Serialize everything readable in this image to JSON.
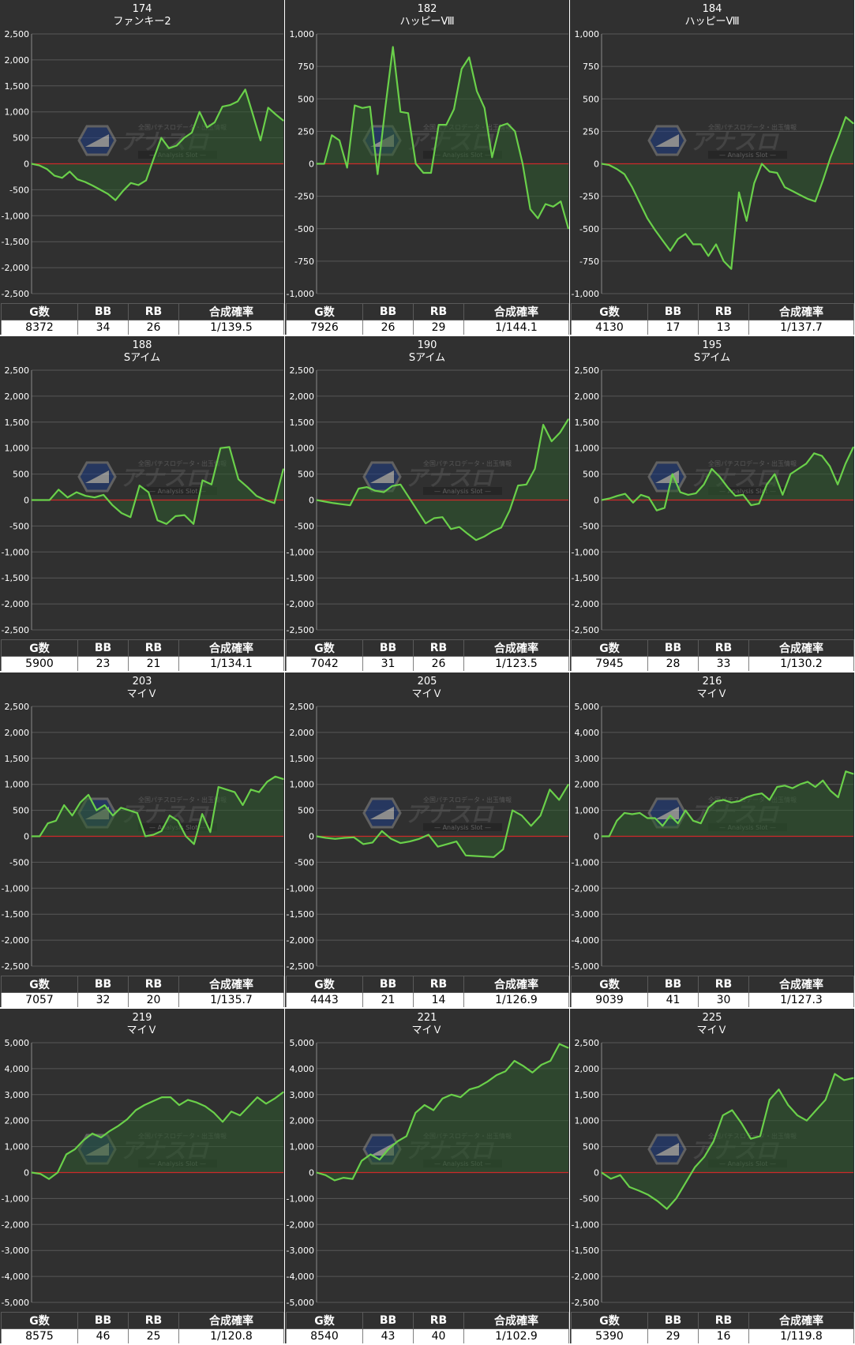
{
  "colors": {
    "panel_bg": "#303030",
    "line": "#6ad04a",
    "fill": "#2e5a2e",
    "zero_line": "#cc2a2a",
    "grid": "#575757",
    "axis_text": "#ffffff"
  },
  "table_headers": [
    "G数",
    "BB",
    "RB",
    "合成確率"
  ],
  "watermark": {
    "title": "アナスロ",
    "subtitle": "Analysis Slot",
    "tagline": "全国パチスロデータ・出玉情報"
  },
  "panels": [
    {
      "number": "174",
      "machine": "ファンキー2",
      "stats": [
        "8372",
        "34",
        "26",
        "1/139.5"
      ],
      "chart_data": {
        "type": "area",
        "ylim": [
          -2500,
          2500
        ],
        "yticks": [
          2500,
          2000,
          1500,
          1000,
          500,
          0,
          -500,
          -1000,
          -1500,
          -2000,
          -2500
        ],
        "values": [
          0,
          -30,
          -100,
          -230,
          -270,
          -150,
          -300,
          -350,
          -420,
          -500,
          -580,
          -700,
          -520,
          -370,
          -410,
          -320,
          100,
          500,
          300,
          350,
          500,
          600,
          1000,
          700,
          800,
          1100,
          1130,
          1200,
          1430,
          950,
          450,
          1080,
          950,
          830
        ]
      }
    },
    {
      "number": "182",
      "machine": "ハッピーⅧ",
      "stats": [
        "7926",
        "26",
        "29",
        "1/144.1"
      ],
      "chart_data": {
        "type": "area",
        "ylim": [
          -1000,
          1000
        ],
        "yticks": [
          1000,
          750,
          500,
          250,
          0,
          -250,
          -500,
          -750,
          -1000
        ],
        "values": [
          0,
          0,
          220,
          180,
          -30,
          450,
          430,
          440,
          -80,
          430,
          900,
          400,
          390,
          0,
          -70,
          -70,
          300,
          300,
          420,
          730,
          820,
          560,
          430,
          50,
          290,
          310,
          250,
          0,
          -350,
          -420,
          -310,
          -330,
          -290,
          -500
        ]
      }
    },
    {
      "number": "184",
      "machine": "ハッピーⅧ",
      "stats": [
        "4130",
        "17",
        "13",
        "1/137.7"
      ],
      "chart_data": {
        "type": "area",
        "ylim": [
          -1000,
          1000
        ],
        "yticks": [
          1000,
          750,
          500,
          250,
          0,
          -250,
          -500,
          -750,
          -1000
        ],
        "values": [
          0,
          -10,
          -40,
          -80,
          -180,
          -300,
          -420,
          -510,
          -590,
          -670,
          -580,
          -540,
          -620,
          -620,
          -710,
          -620,
          -750,
          -810,
          -220,
          -440,
          -150,
          0,
          -60,
          -70,
          -180,
          -210,
          -240,
          -270,
          -290,
          -130,
          50,
          200,
          360,
          310
        ]
      }
    },
    {
      "number": "188",
      "machine": "Sアイム",
      "stats": [
        "5900",
        "23",
        "21",
        "1/134.1"
      ],
      "chart_data": {
        "type": "area",
        "ylim": [
          -2500,
          2500
        ],
        "yticks": [
          2500,
          2000,
          1500,
          1000,
          500,
          0,
          -500,
          -1000,
          -1500,
          -2000,
          -2500
        ],
        "values": [
          0,
          0,
          0,
          200,
          50,
          150,
          80,
          50,
          100,
          -100,
          -250,
          -330,
          280,
          150,
          -390,
          -460,
          -310,
          -290,
          -460,
          380,
          300,
          1000,
          1020,
          400,
          250,
          80,
          0,
          -60,
          600
        ]
      }
    },
    {
      "number": "190",
      "machine": "Sアイム",
      "stats": [
        "7042",
        "31",
        "26",
        "1/123.5"
      ],
      "chart_data": {
        "type": "area",
        "ylim": [
          -2500,
          2500
        ],
        "yticks": [
          2500,
          2000,
          1500,
          1000,
          500,
          0,
          -500,
          -1000,
          -1500,
          -2000,
          -2500
        ],
        "values": [
          0,
          -30,
          -60,
          -80,
          -100,
          220,
          250,
          180,
          150,
          270,
          300,
          50,
          -200,
          -450,
          -350,
          -330,
          -560,
          -520,
          -650,
          -770,
          -700,
          -600,
          -530,
          -200,
          280,
          300,
          600,
          1450,
          1130,
          1300,
          1560
        ]
      }
    },
    {
      "number": "195",
      "machine": "Sアイム",
      "stats": [
        "7945",
        "28",
        "33",
        "1/130.2"
      ],
      "chart_data": {
        "type": "area",
        "ylim": [
          -2500,
          2500
        ],
        "yticks": [
          2500,
          2000,
          1500,
          1000,
          500,
          0,
          -500,
          -1000,
          -1500,
          -2000,
          -2500
        ],
        "values": [
          0,
          30,
          80,
          120,
          -50,
          100,
          50,
          -200,
          -150,
          500,
          150,
          100,
          130,
          300,
          600,
          450,
          250,
          80,
          100,
          -100,
          -70,
          300,
          500,
          100,
          500,
          600,
          700,
          900,
          850,
          650,
          300,
          700,
          1020
        ]
      }
    },
    {
      "number": "203",
      "machine": "マイＶ",
      "stats": [
        "7057",
        "32",
        "20",
        "1/135.7"
      ],
      "chart_data": {
        "type": "area",
        "ylim": [
          -2500,
          2500
        ],
        "yticks": [
          2500,
          2000,
          1500,
          1000,
          500,
          0,
          -500,
          -1000,
          -1500,
          -2000,
          -2500
        ],
        "values": [
          0,
          0,
          250,
          300,
          600,
          400,
          650,
          800,
          500,
          600,
          400,
          550,
          500,
          450,
          0,
          30,
          100,
          400,
          300,
          0,
          -150,
          430,
          80,
          950,
          900,
          850,
          600,
          900,
          850,
          1050,
          1150,
          1100
        ]
      }
    },
    {
      "number": "205",
      "machine": "マイＶ",
      "stats": [
        "4443",
        "21",
        "14",
        "1/126.9"
      ],
      "chart_data": {
        "type": "area",
        "ylim": [
          -2500,
          2500
        ],
        "yticks": [
          2500,
          2000,
          1500,
          1000,
          500,
          0,
          -500,
          -1000,
          -1500,
          -2000,
          -2500
        ],
        "values": [
          0,
          -30,
          -50,
          -30,
          -20,
          -150,
          -120,
          100,
          -50,
          -130,
          -100,
          -50,
          30,
          -200,
          -150,
          -100,
          -370,
          -380,
          -390,
          -400,
          -250,
          500,
          400,
          200,
          400,
          900,
          700,
          1000
        ]
      }
    },
    {
      "number": "216",
      "machine": "マイＶ",
      "stats": [
        "9039",
        "41",
        "30",
        "1/127.3"
      ],
      "chart_data": {
        "type": "area",
        "ylim": [
          -5000,
          5000
        ],
        "yticks": [
          5000,
          4000,
          3000,
          2000,
          1000,
          0,
          -1000,
          -2000,
          -3000,
          -4000,
          -5000
        ],
        "values": [
          0,
          0,
          600,
          900,
          850,
          900,
          700,
          700,
          400,
          800,
          500,
          1000,
          600,
          500,
          1100,
          1350,
          1400,
          1300,
          1350,
          1500,
          1600,
          1650,
          1400,
          1900,
          1950,
          1850,
          2000,
          2100,
          1900,
          2150,
          1750,
          1500,
          2500,
          2400
        ]
      }
    },
    {
      "number": "219",
      "machine": "マイＶ",
      "stats": [
        "8575",
        "46",
        "25",
        "1/120.8"
      ],
      "chart_data": {
        "type": "area",
        "ylim": [
          -5000,
          5000
        ],
        "yticks": [
          5000,
          4000,
          3000,
          2000,
          1000,
          0,
          -1000,
          -2000,
          -3000,
          -4000,
          -5000
        ],
        "values": [
          0,
          -50,
          -250,
          0,
          700,
          900,
          1250,
          1500,
          1350,
          1600,
          1800,
          2050,
          2400,
          2600,
          2750,
          2900,
          2900,
          2600,
          2800,
          2700,
          2550,
          2300,
          1950,
          2350,
          2200,
          2550,
          2900,
          2650,
          2850,
          3100
        ]
      }
    },
    {
      "number": "221",
      "machine": "マイＶ",
      "stats": [
        "8540",
        "43",
        "40",
        "1/102.9"
      ],
      "chart_data": {
        "type": "area",
        "ylim": [
          -5000,
          5000
        ],
        "yticks": [
          5000,
          4000,
          3000,
          2000,
          1000,
          0,
          -1000,
          -2000,
          -3000,
          -4000,
          -5000
        ],
        "values": [
          0,
          -100,
          -300,
          -200,
          -250,
          450,
          700,
          500,
          900,
          1200,
          1400,
          2300,
          2600,
          2400,
          2850,
          3000,
          2900,
          3200,
          3300,
          3500,
          3750,
          3900,
          4300,
          4100,
          3850,
          4150,
          4300,
          4950,
          4800
        ]
      }
    },
    {
      "number": "225",
      "machine": "マイＶ",
      "stats": [
        "5390",
        "29",
        "16",
        "1/119.8"
      ],
      "chart_data": {
        "type": "area",
        "ylim": [
          -2500,
          2500
        ],
        "yticks": [
          2500,
          2000,
          1500,
          1000,
          500,
          0,
          -500,
          -1000,
          -1500,
          -2000,
          -2500
        ],
        "values": [
          0,
          -120,
          -50,
          -280,
          -350,
          -430,
          -550,
          -700,
          -500,
          -200,
          100,
          300,
          600,
          1100,
          1200,
          950,
          650,
          700,
          1400,
          1600,
          1300,
          1100,
          1000,
          1200,
          1400,
          1900,
          1780,
          1820
        ]
      }
    }
  ]
}
